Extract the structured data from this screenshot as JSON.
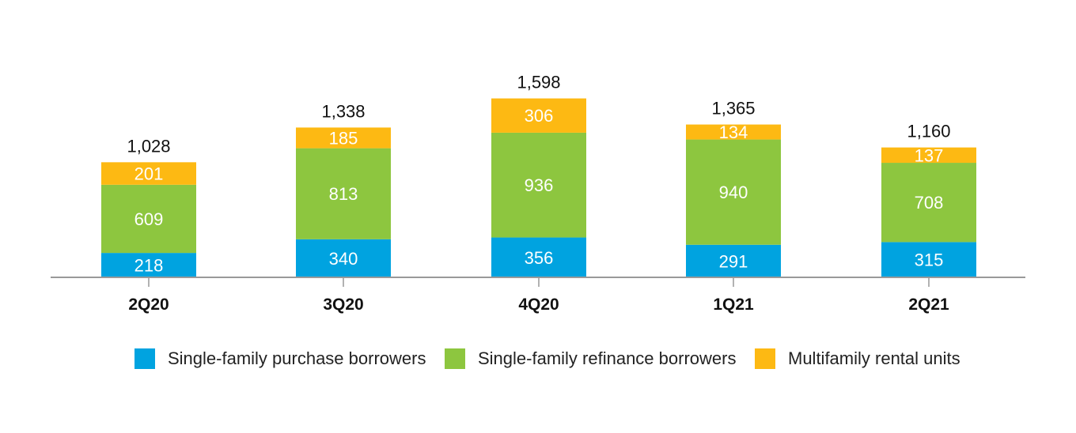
{
  "chart_data": {
    "type": "bar",
    "stacked": true,
    "categories": [
      "2Q20",
      "3Q20",
      "4Q20",
      "1Q21",
      "2Q21"
    ],
    "series": [
      {
        "name": "Single-family purchase borrowers",
        "values": [
          218,
          340,
          356,
          291,
          315
        ],
        "color": "#00a3e0"
      },
      {
        "name": "Single-family refinance borrowers",
        "values": [
          609,
          813,
          936,
          940,
          708
        ],
        "color": "#8dc63f"
      },
      {
        "name": "Multifamily rental units",
        "values": [
          201,
          185,
          306,
          134,
          137
        ],
        "color": "#fdb913"
      }
    ],
    "totals": [
      "1,028",
      "1,338",
      "1,598",
      "1,365",
      "1,160"
    ],
    "segment_labels": [
      [
        "218",
        "340",
        "356",
        "291",
        "315"
      ],
      [
        "609",
        "813",
        "936",
        "940",
        "708"
      ],
      [
        "201",
        "185",
        "306",
        "134",
        "137"
      ]
    ],
    "title": "",
    "xlabel": "",
    "ylabel": "",
    "grid": false,
    "legend_position": "bottom"
  }
}
